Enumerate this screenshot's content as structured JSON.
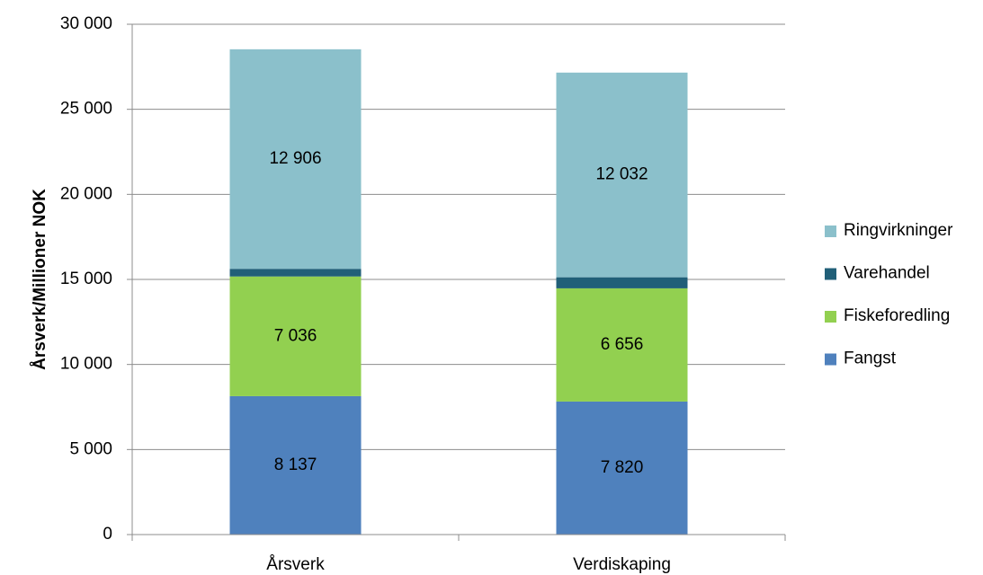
{
  "chart_data": {
    "type": "stacked_bar",
    "y_label": "Årsverk/Millioner NOK",
    "categories": [
      "Årsverk",
      "Verdiskaping"
    ],
    "series": [
      {
        "name": "Fangst",
        "color": "#4f81bd",
        "values": [
          8137,
          7820
        ],
        "value_labels": [
          "8 137",
          "7 820"
        ]
      },
      {
        "name": "Fiskeforedling",
        "color": "#92d050",
        "values": [
          7036,
          6656
        ],
        "value_labels": [
          "7 036",
          "6 656"
        ]
      },
      {
        "name": "Varehandel",
        "color": "#215f78",
        "values": [
          450,
          650
        ]
      },
      {
        "name": "Ringvirkninger",
        "color": "#8bc0cb",
        "values": [
          12906,
          12032
        ],
        "value_labels": [
          "12 906",
          "12 032"
        ]
      }
    ],
    "ylim": [
      0,
      30000
    ],
    "yticks": [
      0,
      {
        "value": 5000,
        "label": "5 000"
      },
      {
        "value": 10000,
        "label": "10 000"
      },
      {
        "value": 15000,
        "label": "15 000"
      },
      {
        "value": 20000,
        "label": "20 000"
      },
      {
        "value": 25000,
        "label": "25 000"
      },
      {
        "value": 30000,
        "label": "30 000"
      }
    ],
    "grid": true,
    "legend": "right"
  }
}
